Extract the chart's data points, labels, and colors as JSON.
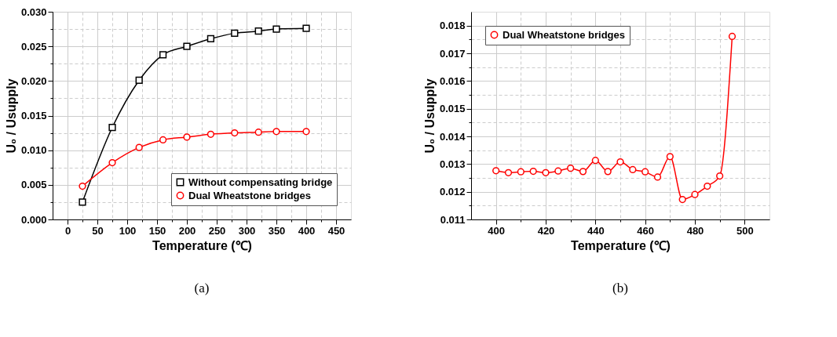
{
  "chart_data": [
    {
      "type": "line",
      "xlabel": "Temperature (℃)",
      "ylabel": "U₀ / Usupply",
      "annotations": [
        "(a)"
      ],
      "xlim": [
        -25,
        475
      ],
      "xticks": [
        0,
        {
          "value": 25,
          "label": null
        },
        50,
        {
          "value": 75,
          "label": null
        },
        100,
        {
          "value": 125,
          "label": null
        },
        150,
        {
          "value": 175,
          "label": null
        },
        200,
        {
          "value": 225,
          "label": null
        },
        250,
        {
          "value": 275,
          "label": null
        },
        300,
        {
          "value": 325,
          "label": null
        },
        350,
        {
          "value": 375,
          "label": null
        },
        400,
        {
          "value": 425,
          "label": null
        },
        450
      ],
      "ylim": [
        0,
        0.03
      ],
      "yticks": [
        {
          "value": 0,
          "label": "0.000"
        },
        {
          "value": 0.0025,
          "label": null
        },
        0.005,
        {
          "value": 0.0075,
          "label": null
        },
        {
          "value": 0.01,
          "label": "0.010"
        },
        {
          "value": 0.0125,
          "label": null
        },
        0.015,
        {
          "value": 0.0175,
          "label": null
        },
        {
          "value": 0.02,
          "label": "0.020"
        },
        {
          "value": 0.0225,
          "label": null
        },
        0.025,
        {
          "value": 0.0275,
          "label": null
        },
        {
          "value": 0.03,
          "label": "0.030"
        }
      ],
      "grid": true,
      "legend": "bottom right",
      "x": [
        25,
        75,
        120,
        160,
        200,
        240,
        280,
        320,
        350,
        400
      ],
      "series": [
        {
          "name": "Without compensating bridge",
          "color": "#000000",
          "marker": "square",
          "values": [
            0.0025,
            0.0133,
            0.0201,
            0.0238,
            0.025,
            0.0261,
            0.0269,
            0.0272,
            0.0275,
            0.0276
          ]
        },
        {
          "name": "Dual Wheatstone bridges",
          "color": "#ff0000",
          "marker": "circle",
          "values": [
            0.0048,
            0.0082,
            0.0104,
            0.0115,
            0.0119,
            0.0123,
            0.0125,
            0.0126,
            0.0127,
            0.0127
          ]
        }
      ]
    },
    {
      "type": "line",
      "xlabel": "Temperature (℃)",
      "ylabel": "U₀ / Usupply",
      "annotations": [
        "(b)"
      ],
      "xlim": [
        390,
        510
      ],
      "xticks": [
        400,
        {
          "value": 410,
          "label": null
        },
        420,
        {
          "value": 430,
          "label": null
        },
        440,
        {
          "value": 450,
          "label": null
        },
        460,
        {
          "value": 470,
          "label": null
        },
        480,
        {
          "value": 490,
          "label": null
        },
        500
      ],
      "ylim": [
        0.011,
        0.0185
      ],
      "yticks": [
        0.011,
        {
          "value": 0.0115,
          "label": null
        },
        0.012,
        {
          "value": 0.0125,
          "label": null
        },
        0.013,
        {
          "value": 0.0135,
          "label": null
        },
        0.014,
        {
          "value": 0.0145,
          "label": null
        },
        0.015,
        {
          "value": 0.0155,
          "label": null
        },
        0.016,
        {
          "value": 0.0165,
          "label": null
        },
        0.017,
        {
          "value": 0.0175,
          "label": null
        },
        0.018
      ],
      "grid": true,
      "legend": "top left",
      "x": [
        400,
        405,
        410,
        415,
        420,
        425,
        430,
        435,
        440,
        445,
        450,
        455,
        460,
        465,
        470,
        475,
        480,
        485,
        490,
        495
      ],
      "series": [
        {
          "name": "Dual Wheatstone bridges",
          "color": "#ff0000",
          "marker": "circle",
          "values": [
            0.01276,
            0.01269,
            0.01272,
            0.01274,
            0.01269,
            0.01275,
            0.01285,
            0.01273,
            0.01313,
            0.01273,
            0.01308,
            0.0128,
            0.01272,
            0.01253,
            0.01327,
            0.01172,
            0.0119,
            0.0122,
            0.01257,
            0.01761
          ]
        }
      ]
    }
  ]
}
